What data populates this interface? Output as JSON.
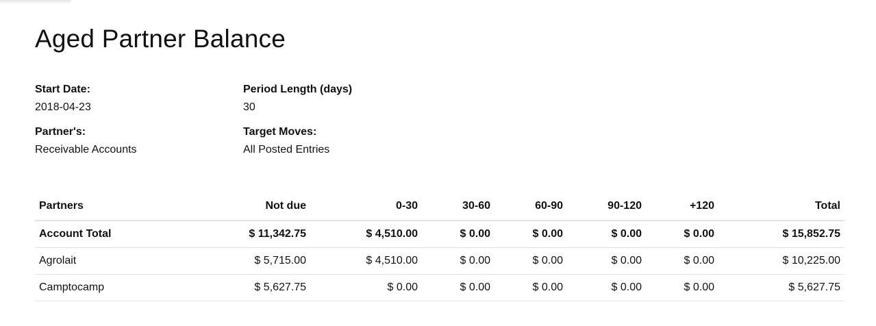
{
  "report": {
    "title": "Aged Partner Balance"
  },
  "info": {
    "start_date": {
      "label": "Start Date:",
      "value": "2018-04-23"
    },
    "period_length": {
      "label": "Period Length (days)",
      "value": "30"
    },
    "partners": {
      "label": "Partner's:",
      "value": "Receivable Accounts"
    },
    "target_moves": {
      "label": "Target Moves:",
      "value": "All Posted Entries"
    }
  },
  "table": {
    "headers": [
      "Partners",
      "Not due",
      "0-30",
      "30-60",
      "60-90",
      "90-120",
      "+120",
      "Total"
    ],
    "total_row": [
      "Account Total",
      "$ 11,342.75",
      "$ 4,510.00",
      "$ 0.00",
      "$ 0.00",
      "$ 0.00",
      "$ 0.00",
      "$ 15,852.75"
    ],
    "rows": [
      [
        "Agrolait",
        "$ 5,715.00",
        "$ 4,510.00",
        "$ 0.00",
        "$ 0.00",
        "$ 0.00",
        "$ 0.00",
        "$ 10,225.00"
      ],
      [
        "Camptocamp",
        "$ 5,627.75",
        "$ 0.00",
        "$ 0.00",
        "$ 0.00",
        "$ 0.00",
        "$ 0.00",
        "$ 5,627.75"
      ]
    ]
  }
}
